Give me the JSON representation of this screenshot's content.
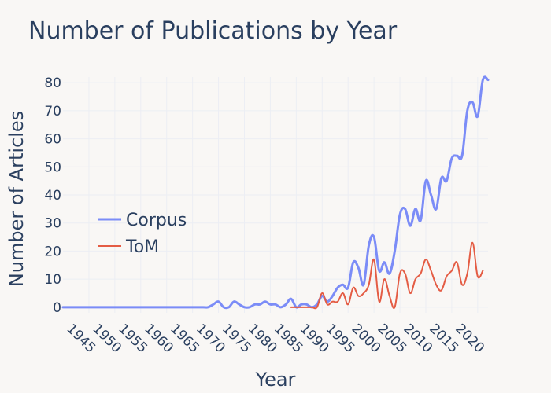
{
  "chart_data": {
    "type": "line",
    "title": "Number of Publications by Year",
    "xlabel": "Year",
    "ylabel": "Number of Articles",
    "xlim": [
      1940,
      2022
    ],
    "ylim": [
      -2,
      82
    ],
    "x_ticks": [
      1945,
      1950,
      1955,
      1960,
      1965,
      1970,
      1975,
      1980,
      1985,
      1990,
      1995,
      2000,
      2005,
      2010,
      2015,
      2020
    ],
    "y_ticks": [
      0,
      10,
      20,
      30,
      40,
      50,
      60,
      70,
      80
    ],
    "grid": true,
    "legend_position": "left-middle",
    "series": [
      {
        "name": "Corpus",
        "color": "#7b8cf7",
        "x": [
          1940,
          1945,
          1950,
          1955,
          1960,
          1965,
          1967,
          1968,
          1969,
          1970,
          1971,
          1972,
          1973,
          1974,
          1975,
          1976,
          1977,
          1978,
          1979,
          1980,
          1981,
          1982,
          1983,
          1984,
          1985,
          1986,
          1987,
          1988,
          1989,
          1990,
          1991,
          1992,
          1993,
          1994,
          1995,
          1996,
          1997,
          1998,
          1999,
          2000,
          2001,
          2002,
          2003,
          2004,
          2005,
          2006,
          2007,
          2008,
          2009,
          2010,
          2011,
          2012,
          2013,
          2014,
          2015,
          2016,
          2017,
          2018,
          2019,
          2020,
          2021,
          2022
        ],
        "values": [
          0,
          0,
          0,
          0,
          0,
          0,
          0,
          0,
          1,
          2,
          0,
          0,
          2,
          1,
          0,
          0,
          1,
          1,
          2,
          1,
          1,
          0,
          1,
          3,
          0,
          1,
          1,
          0,
          1,
          4,
          2,
          4,
          7,
          8,
          7,
          16,
          14,
          8,
          22,
          25,
          13,
          16,
          12,
          20,
          33,
          35,
          29,
          35,
          31,
          45,
          40,
          35,
          46,
          45,
          53,
          54,
          54,
          70,
          73,
          68,
          81,
          81
        ]
      },
      {
        "name": "ToM",
        "color": "#e45c44",
        "x": [
          1984,
          1985,
          1986,
          1987,
          1988,
          1989,
          1990,
          1991,
          1992,
          1993,
          1994,
          1995,
          1996,
          1997,
          1998,
          1999,
          2000,
          2001,
          2002,
          2003,
          2004,
          2005,
          2006,
          2007,
          2008,
          2009,
          2010,
          2011,
          2012,
          2013,
          2014,
          2015,
          2016,
          2017,
          2018,
          2019,
          2020,
          2021
        ],
        "values": [
          0,
          0,
          0,
          0,
          0,
          0,
          5,
          1,
          2,
          2,
          5,
          1,
          7,
          4,
          5,
          8,
          17,
          2,
          10,
          4,
          0,
          12,
          12,
          5,
          10,
          12,
          17,
          13,
          8,
          6,
          11,
          13,
          16,
          8,
          12,
          23,
          11,
          13
        ]
      }
    ]
  }
}
